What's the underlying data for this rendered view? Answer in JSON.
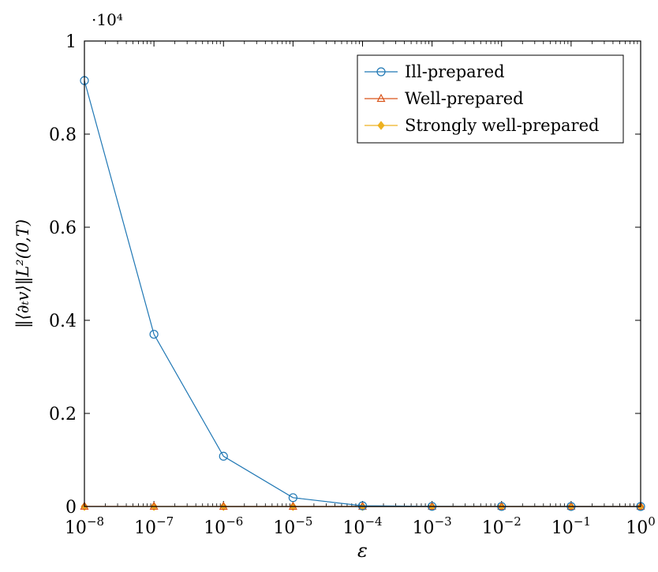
{
  "chart_data": {
    "type": "line",
    "x_scale": "log",
    "y_multiplier": "·10⁴",
    "xlabel": "ε",
    "ylabel": "‖⟨∂ₜv⟩‖L²(0,T)",
    "xlim": [
      1e-08,
      1
    ],
    "ylim": [
      0,
      10000
    ],
    "x": [
      1e-08,
      1e-07,
      1e-06,
      1e-05,
      0.0001,
      0.001,
      0.01,
      0.1,
      1
    ],
    "x_tick_labels": [
      {
        "base": "10",
        "exp": "−8"
      },
      {
        "base": "10",
        "exp": "−7"
      },
      {
        "base": "10",
        "exp": "−6"
      },
      {
        "base": "10",
        "exp": "−5"
      },
      {
        "base": "10",
        "exp": "−4"
      },
      {
        "base": "10",
        "exp": "−3"
      },
      {
        "base": "10",
        "exp": "−2"
      },
      {
        "base": "10",
        "exp": "−1"
      },
      {
        "base": "10",
        "exp": "0"
      }
    ],
    "y_ticks": [
      0,
      2000,
      4000,
      6000,
      8000,
      10000
    ],
    "y_tick_labels": [
      "0",
      "0.2",
      "0.4",
      "0.6",
      "0.8",
      "1"
    ],
    "grid": false,
    "legend_position": "top-right",
    "series": [
      {
        "name": "Ill-prepared",
        "color": "#1f77b4",
        "marker": "circle",
        "values": [
          9150,
          3700,
          1080,
          190,
          15,
          3,
          1,
          0.5,
          0.2
        ]
      },
      {
        "name": "Well-prepared",
        "color": "#d95319",
        "marker": "triangle",
        "values": [
          2,
          1,
          0.5,
          0.3,
          0.2,
          0.1,
          0.1,
          0.1,
          0.1
        ]
      },
      {
        "name": "Strongly well-prepared",
        "color": "#edb120",
        "marker": "diamond",
        "values": [
          1,
          0.5,
          0.3,
          0.2,
          0.1,
          0.1,
          0.1,
          0.1,
          0.1
        ]
      }
    ]
  }
}
